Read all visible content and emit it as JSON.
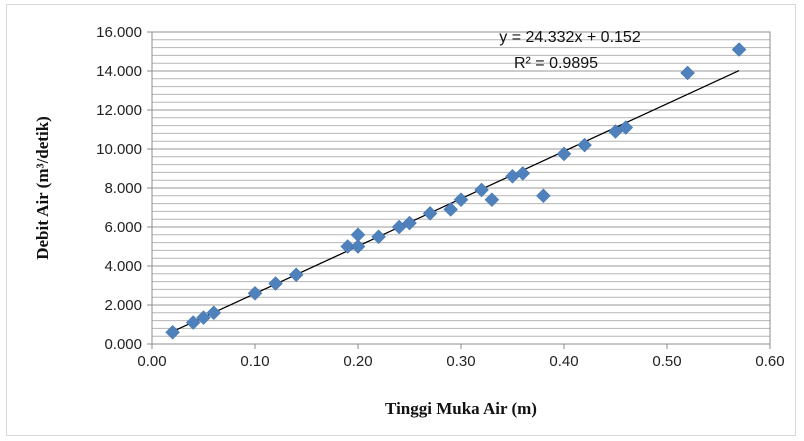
{
  "chart_data": {
    "type": "scatter",
    "title": "",
    "xlabel": "Tinggi Muka Air (m)",
    "ylabel": "Debit Air (m³/detik)",
    "xlim": [
      0.0,
      0.6
    ],
    "ylim": [
      0.0,
      16.0
    ],
    "x_ticks": [
      "0.00",
      "0.10",
      "0.20",
      "0.30",
      "0.40",
      "0.50",
      "0.60"
    ],
    "y_ticks": [
      "0.000",
      "2.000",
      "4.000",
      "6.000",
      "8.000",
      "10.000",
      "12.000",
      "14.000",
      "16.000"
    ],
    "grid": "horizontal-minor",
    "marker": "diamond",
    "marker_color": "#4f81bd",
    "trendline": {
      "type": "linear",
      "slope": 24.332,
      "intercept": 0.152,
      "x_range": [
        0.02,
        0.57
      ],
      "color": "#000000"
    },
    "annotations": [
      "y = 24.332x + 0.152",
      "R² = 0.9895"
    ],
    "points": [
      {
        "x": 0.02,
        "y": 0.6
      },
      {
        "x": 0.04,
        "y": 1.1
      },
      {
        "x": 0.05,
        "y": 1.35
      },
      {
        "x": 0.06,
        "y": 1.6
      },
      {
        "x": 0.1,
        "y": 2.6
      },
      {
        "x": 0.12,
        "y": 3.1
      },
      {
        "x": 0.14,
        "y": 3.55
      },
      {
        "x": 0.19,
        "y": 5.0
      },
      {
        "x": 0.2,
        "y": 5.6
      },
      {
        "x": 0.2,
        "y": 5.0
      },
      {
        "x": 0.22,
        "y": 5.5
      },
      {
        "x": 0.24,
        "y": 6.0
      },
      {
        "x": 0.25,
        "y": 6.2
      },
      {
        "x": 0.27,
        "y": 6.7
      },
      {
        "x": 0.29,
        "y": 6.9
      },
      {
        "x": 0.3,
        "y": 7.4
      },
      {
        "x": 0.32,
        "y": 7.9
      },
      {
        "x": 0.33,
        "y": 7.4
      },
      {
        "x": 0.35,
        "y": 8.6
      },
      {
        "x": 0.36,
        "y": 8.75
      },
      {
        "x": 0.38,
        "y": 7.6
      },
      {
        "x": 0.4,
        "y": 9.75
      },
      {
        "x": 0.42,
        "y": 10.2
      },
      {
        "x": 0.45,
        "y": 10.9
      },
      {
        "x": 0.46,
        "y": 11.1
      },
      {
        "x": 0.52,
        "y": 13.9
      },
      {
        "x": 0.57,
        "y": 15.1
      }
    ]
  }
}
